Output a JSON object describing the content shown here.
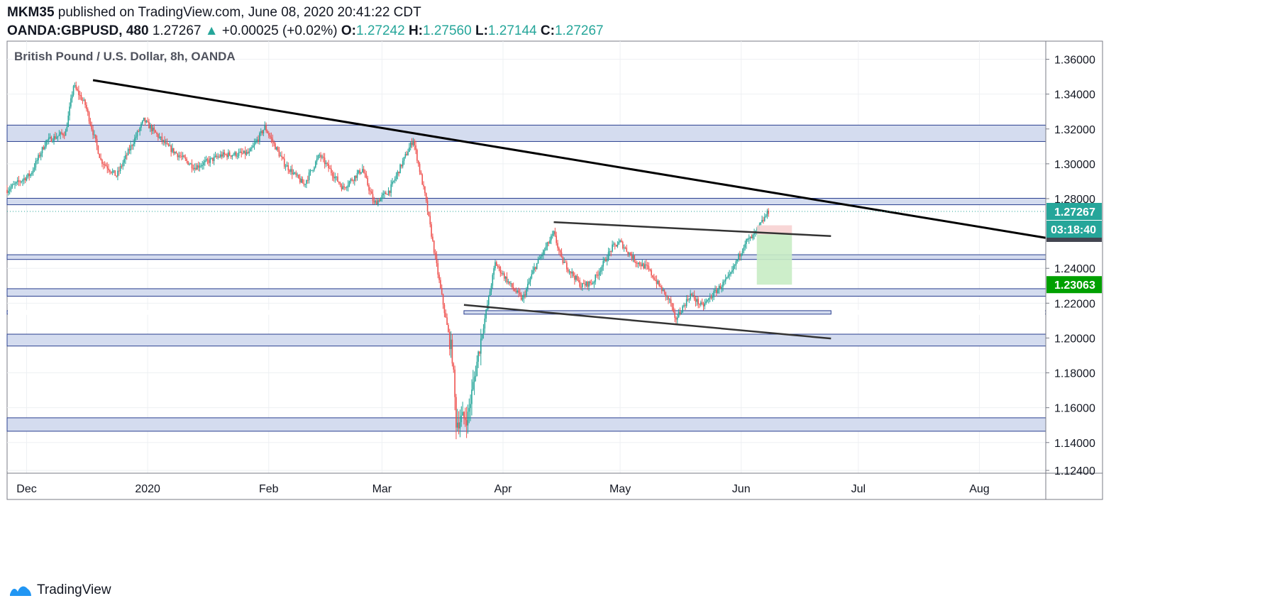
{
  "header": {
    "author": "MKM35",
    "published_text": "published on TradingView.com, June 08, 2020 20:41:22 CDT",
    "symbol": "OANDA:GBPUSD, 480",
    "last": "1.27267",
    "change": "+0.00025 (+0.02%)",
    "open_label": "O:",
    "open": "1.27242",
    "high_label": "H:",
    "high": "1.27560",
    "low_label": "L:",
    "low": "1.27144",
    "close_label": "C:",
    "close": "1.27267"
  },
  "footer": {
    "brand": "TradingView"
  },
  "colors": {
    "up": "#26a69a",
    "down": "#ef5350",
    "zone_fill": "#d4dcef",
    "zone_border": "#2a3f8f",
    "trend": "#000000",
    "channel": "#333333",
    "price_tag": "#26a69a",
    "target_tag": "#00a000",
    "profit_fill": "#c8ecc4",
    "loss_fill": "#f7d2d2",
    "grid": "#eef0f3"
  },
  "chart_data": {
    "type": "candlestick",
    "title": "British Pound / U.S. Dollar, 8h, OANDA",
    "x_labels": [
      "Dec",
      "2020",
      "Feb",
      "Mar",
      "Apr",
      "May",
      "Jun",
      "Jul",
      "Aug"
    ],
    "x_ticks": [
      "2019-12-01",
      "2020-01-01",
      "2020-02-01",
      "2020-03-01",
      "2020-04-01",
      "2020-05-01",
      "2020-06-01",
      "2020-07-01",
      "2020-08-01"
    ],
    "x_range": [
      "2019-11-26",
      "2020-08-18"
    ],
    "y_range": [
      1.1224,
      1.3704
    ],
    "y_ticks": [
      "1.36000",
      "1.34000",
      "1.32000",
      "1.30000",
      "1.28000",
      "1.24000",
      "1.22000",
      "1.20000",
      "1.18000",
      "1.16000",
      "1.14000",
      "1.12400"
    ],
    "price_path": [
      [
        "2019-11-26",
        1.285
      ],
      [
        "2019-12-02",
        1.294
      ],
      [
        "2019-12-06",
        1.313
      ],
      [
        "2019-12-11",
        1.318
      ],
      [
        "2019-12-13",
        1.345
      ],
      [
        "2019-12-16",
        1.334
      ],
      [
        "2019-12-20",
        1.302
      ],
      [
        "2019-12-24",
        1.293
      ],
      [
        "2019-12-31",
        1.325
      ],
      [
        "2020-01-06",
        1.31
      ],
      [
        "2020-01-13",
        1.298
      ],
      [
        "2020-01-20",
        1.305
      ],
      [
        "2020-01-27",
        1.306
      ],
      [
        "2020-01-31",
        1.321
      ],
      [
        "2020-02-05",
        1.3
      ],
      [
        "2020-02-10",
        1.288
      ],
      [
        "2020-02-14",
        1.305
      ],
      [
        "2020-02-20",
        1.286
      ],
      [
        "2020-02-25",
        1.297
      ],
      [
        "2020-02-28",
        1.277
      ],
      [
        "2020-03-03",
        1.285
      ],
      [
        "2020-03-09",
        1.314
      ],
      [
        "2020-03-12",
        1.282
      ],
      [
        "2020-03-16",
        1.228
      ],
      [
        "2020-03-19",
        1.19
      ],
      [
        "2020-03-20",
        1.152
      ],
      [
        "2020-03-23",
        1.155
      ],
      [
        "2020-03-26",
        1.195
      ],
      [
        "2020-03-30",
        1.243
      ],
      [
        "2020-04-03",
        1.23
      ],
      [
        "2020-04-06",
        1.222
      ],
      [
        "2020-04-09",
        1.24
      ],
      [
        "2020-04-14",
        1.26
      ],
      [
        "2020-04-16",
        1.245
      ],
      [
        "2020-04-21",
        1.23
      ],
      [
        "2020-04-24",
        1.232
      ],
      [
        "2020-04-29",
        1.252
      ],
      [
        "2020-05-01",
        1.255
      ],
      [
        "2020-05-05",
        1.244
      ],
      [
        "2020-05-08",
        1.24
      ],
      [
        "2020-05-14",
        1.22
      ],
      [
        "2020-05-15",
        1.21
      ],
      [
        "2020-05-19",
        1.225
      ],
      [
        "2020-05-22",
        1.218
      ],
      [
        "2020-05-26",
        1.228
      ],
      [
        "2020-05-29",
        1.235
      ],
      [
        "2020-06-02",
        1.255
      ],
      [
        "2020-06-04",
        1.258
      ],
      [
        "2020-06-08",
        1.27267
      ]
    ],
    "zones": [
      [
        1.3128,
        1.3222
      ],
      [
        1.2765,
        1.2802
      ],
      [
        1.2451,
        1.2478
      ],
      [
        1.224,
        1.2283
      ],
      [
        1.2137,
        1.2157
      ],
      [
        1.1954,
        1.2022
      ],
      [
        1.1465,
        1.1542
      ]
    ],
    "trend_lines": [
      {
        "from": [
          "2019-12-18",
          1.348
        ],
        "to": [
          "2020-08-18",
          1.2575
        ]
      },
      {
        "from": [
          "2020-04-14",
          1.2665
        ],
        "to": [
          "2020-06-24",
          1.2585
        ]
      },
      {
        "from": [
          "2020-03-22",
          1.219
        ],
        "to": [
          "2020-06-24",
          1.1997
        ]
      }
    ],
    "position": {
      "start": "2020-06-05",
      "end": "2020-06-14",
      "entry": 1.2595,
      "stop": 1.2647,
      "target": 1.23063
    },
    "last_price": "1.27267",
    "countdown": "03:18:40",
    "target_label": "1.23063"
  }
}
